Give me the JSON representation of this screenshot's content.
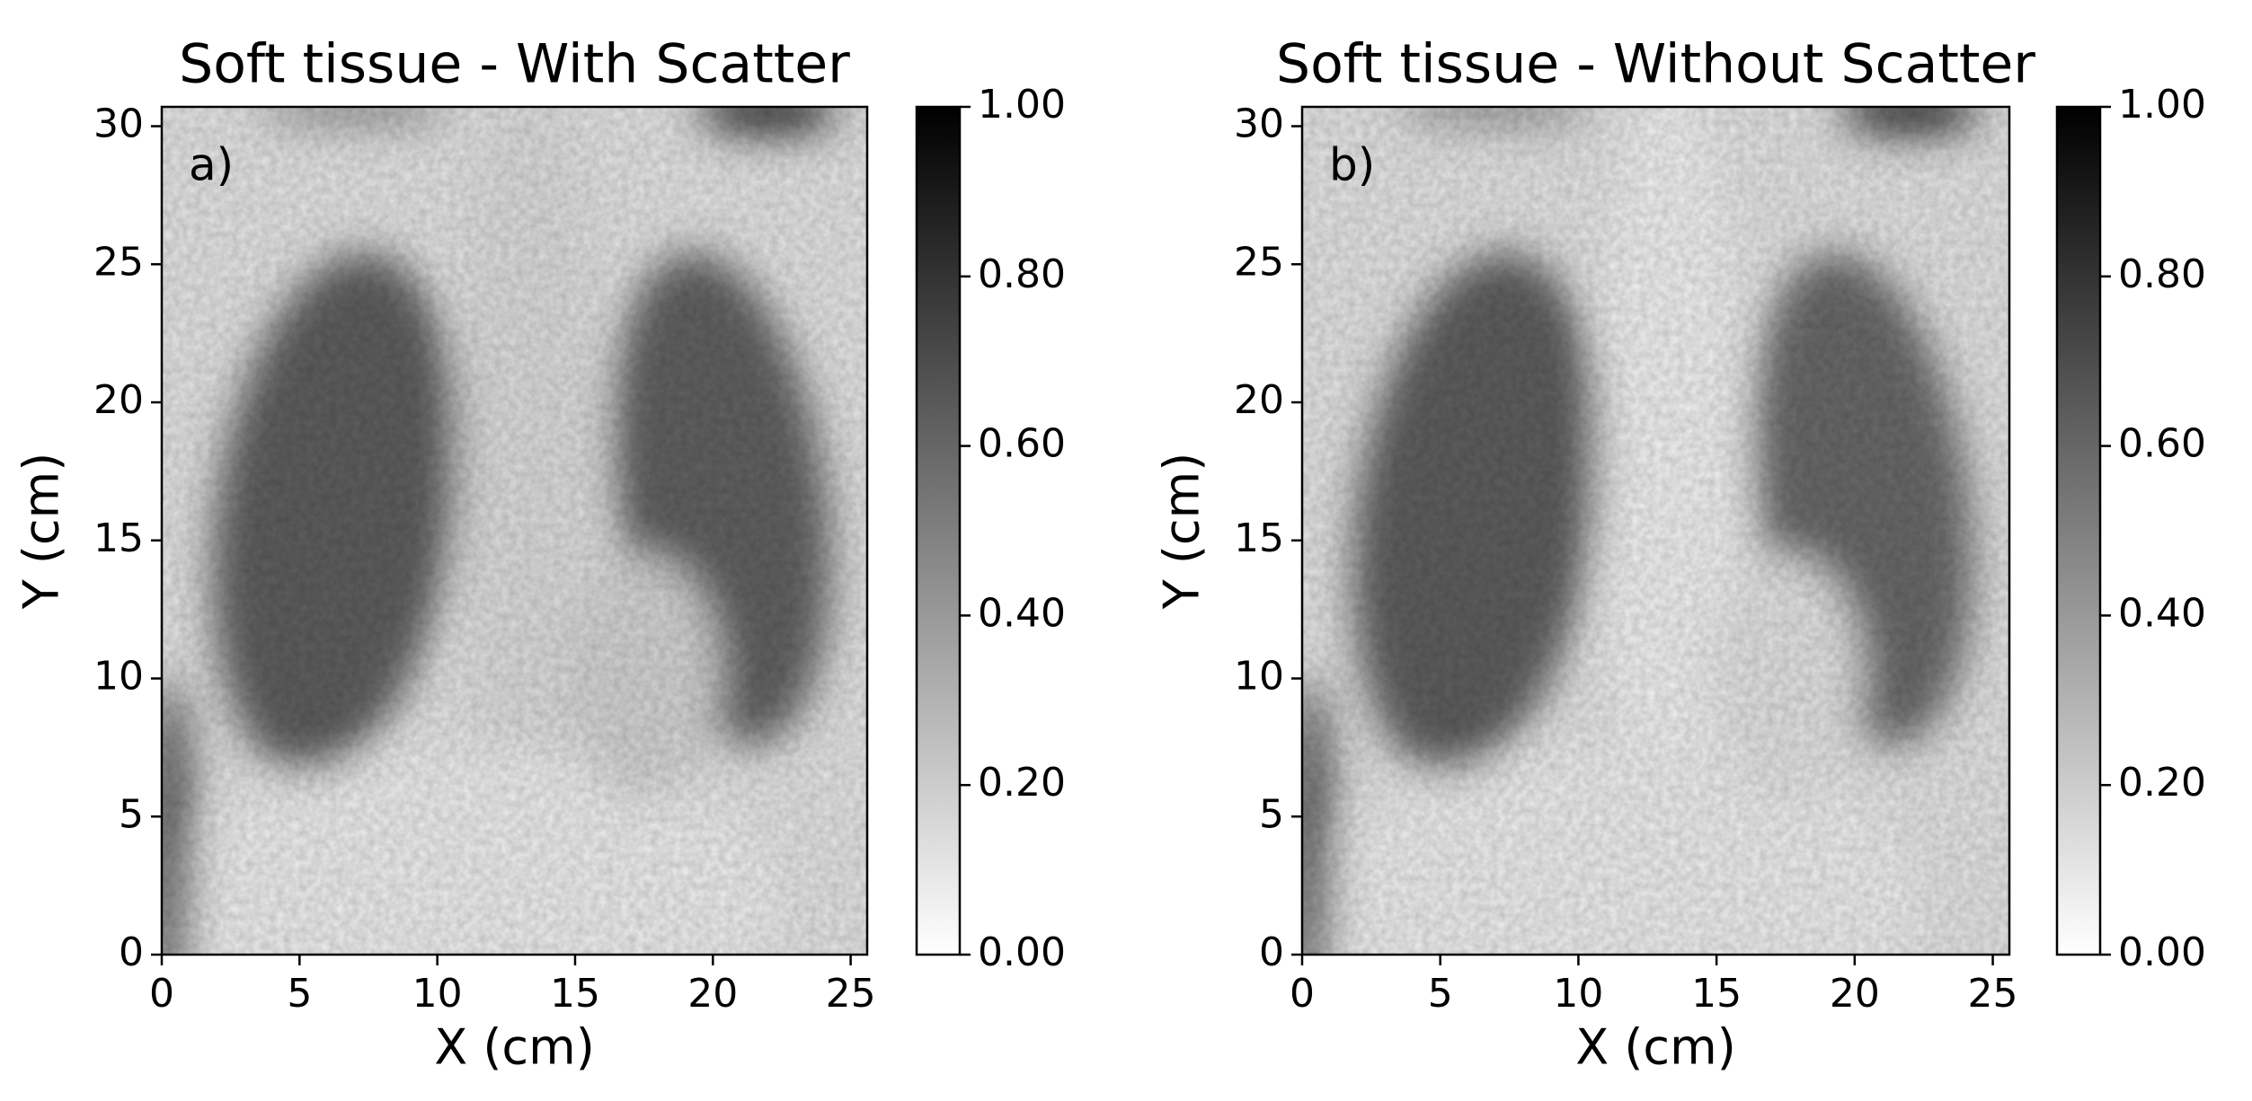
{
  "chart_data": [
    {
      "type": "image",
      "title": "Soft tissue - With Scatter",
      "annotation": "a)",
      "xlabel": "X (cm)",
      "ylabel": "Y (cm)",
      "xlim": [
        0,
        25.6
      ],
      "ylim": [
        0,
        30.7
      ],
      "xticks": [
        0,
        5,
        10,
        15,
        20,
        25
      ],
      "yticks": [
        0,
        5,
        10,
        15,
        20,
        25,
        30
      ],
      "cmap": "gray_r",
      "clim": [
        0,
        1
      ],
      "cticks": [
        {
          "value": 0,
          "label": "0.00"
        },
        {
          "value": 0.2,
          "label": "0.20"
        },
        {
          "value": 0.4,
          "label": "0.40"
        },
        {
          "value": 0.6,
          "label": "0.60"
        },
        {
          "value": 0.8,
          "label": "0.80"
        },
        {
          "value": 1,
          "label": "1.00"
        }
      ]
    },
    {
      "type": "image",
      "title": "Soft tissue - Without Scatter",
      "annotation": "b)",
      "xlabel": "X (cm)",
      "ylabel": "Y (cm)",
      "xlim": [
        0,
        25.6
      ],
      "ylim": [
        0,
        30.7
      ],
      "xticks": [
        0,
        5,
        10,
        15,
        20,
        25
      ],
      "yticks": [
        0,
        5,
        10,
        15,
        20,
        25,
        30
      ],
      "cmap": "gray_r",
      "clim": [
        0,
        1
      ],
      "cticks": [
        {
          "value": 0,
          "label": "0.00"
        },
        {
          "value": 0.2,
          "label": "0.20"
        },
        {
          "value": 0.4,
          "label": "0.40"
        },
        {
          "value": 0.6,
          "label": "0.60"
        },
        {
          "value": 0.8,
          "label": "0.80"
        },
        {
          "value": 1,
          "label": "1.00"
        }
      ]
    }
  ]
}
